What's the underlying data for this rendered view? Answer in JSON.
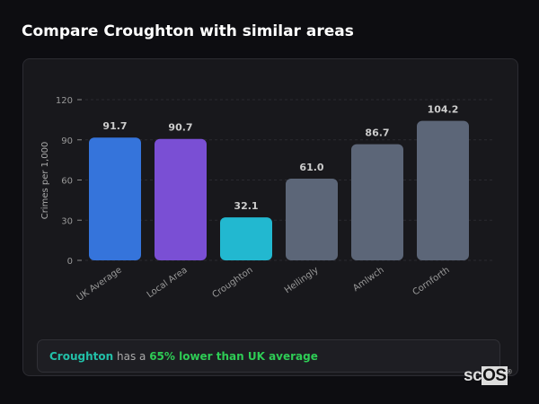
{
  "title": "Compare Croughton with similar areas",
  "chart_data": {
    "type": "bar",
    "categories": [
      "UK Average",
      "Local Area",
      "Croughton",
      "Hellingly",
      "Amlwch",
      "Cornforth"
    ],
    "values": [
      91.7,
      90.7,
      32.1,
      61.0,
      86.7,
      104.2
    ],
    "colors": [
      "#3574db",
      "#7a4fd4",
      "#22b8d0",
      "#5c6678",
      "#5c6678",
      "#5c6678"
    ],
    "ylabel": "Crimes per 1,000",
    "ylim": [
      0,
      120
    ],
    "yticks": [
      0,
      30,
      60,
      90,
      120
    ],
    "grid": true
  },
  "summary": {
    "place": "Croughton",
    "middle": " has a ",
    "highlight": "65% lower than UK average"
  },
  "logo": {
    "text1": "sc",
    "text2": "OS"
  }
}
